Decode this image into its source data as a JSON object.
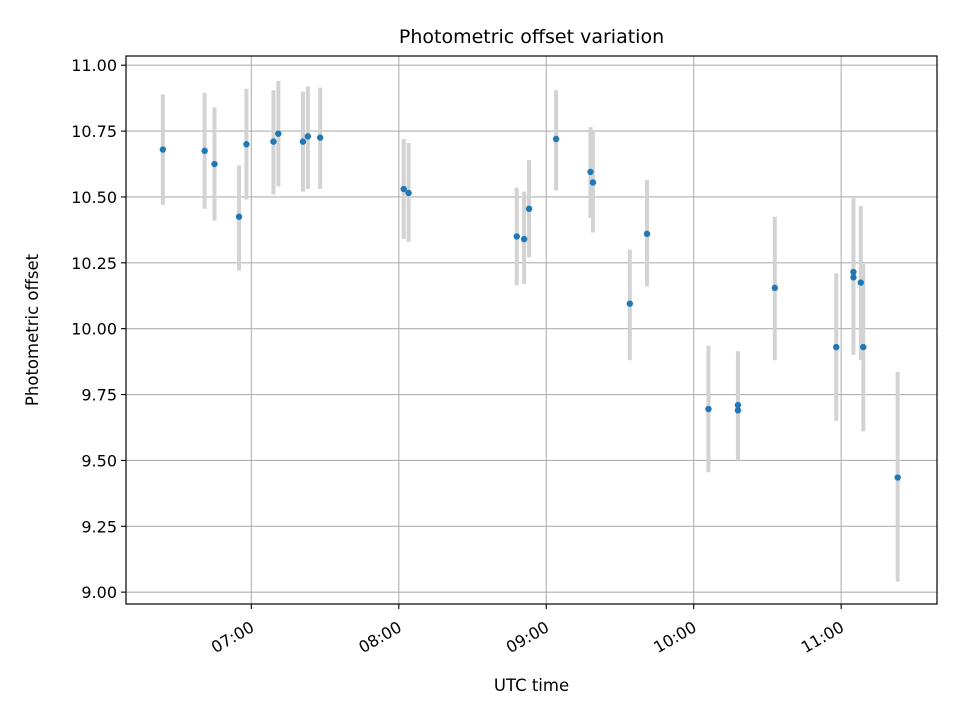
{
  "chart_data": {
    "type": "scatter",
    "title": "Photometric offset variation",
    "xlabel": "UTC time",
    "ylabel": "Photometric offset",
    "x_range": [
      "06:09",
      "11:39"
    ],
    "ylim": [
      8.955,
      11.035
    ],
    "x_ticks": [
      "07:00",
      "08:00",
      "09:00",
      "10:00",
      "11:00"
    ],
    "y_ticks": [
      9.0,
      9.25,
      9.5,
      9.75,
      10.0,
      10.25,
      10.5,
      10.75,
      11.0
    ],
    "y_tick_labels": [
      "9.00",
      "9.25",
      "9.50",
      "9.75",
      "10.00",
      "10.25",
      "10.50",
      "10.75",
      "11.00"
    ],
    "grid": true,
    "colors": {
      "point": "#1f77b4",
      "error_bar": "#d3d3d3",
      "grid": "#b0b0b0"
    },
    "points": [
      {
        "x": "06:24",
        "y": 10.68,
        "lo": 10.47,
        "hi": 10.89
      },
      {
        "x": "06:41",
        "y": 10.675,
        "lo": 10.455,
        "hi": 10.895
      },
      {
        "x": "06:45",
        "y": 10.625,
        "lo": 10.41,
        "hi": 10.84
      },
      {
        "x": "06:55",
        "y": 10.425,
        "lo": 10.22,
        "hi": 10.62
      },
      {
        "x": "06:58",
        "y": 10.7,
        "lo": 10.49,
        "hi": 10.91
      },
      {
        "x": "07:09",
        "y": 10.71,
        "lo": 10.51,
        "hi": 10.905
      },
      {
        "x": "07:11",
        "y": 10.74,
        "lo": 10.54,
        "hi": 10.94
      },
      {
        "x": "07:21",
        "y": 10.71,
        "lo": 10.52,
        "hi": 10.9
      },
      {
        "x": "07:23",
        "y": 10.73,
        "lo": 10.53,
        "hi": 10.92
      },
      {
        "x": "07:28",
        "y": 10.725,
        "lo": 10.53,
        "hi": 10.915
      },
      {
        "x": "08:02",
        "y": 10.53,
        "lo": 10.34,
        "hi": 10.72
      },
      {
        "x": "08:04",
        "y": 10.515,
        "lo": 10.33,
        "hi": 10.705
      },
      {
        "x": "08:48",
        "y": 10.35,
        "lo": 10.165,
        "hi": 10.535
      },
      {
        "x": "08:51",
        "y": 10.34,
        "lo": 10.17,
        "hi": 10.52
      },
      {
        "x": "08:53",
        "y": 10.455,
        "lo": 10.27,
        "hi": 10.64
      },
      {
        "x": "09:04",
        "y": 10.72,
        "lo": 10.525,
        "hi": 10.905
      },
      {
        "x": "09:18",
        "y": 10.595,
        "lo": 10.42,
        "hi": 10.765
      },
      {
        "x": "09:19",
        "y": 10.555,
        "lo": 10.365,
        "hi": 10.755
      },
      {
        "x": "09:34",
        "y": 10.095,
        "lo": 9.88,
        "hi": 10.3
      },
      {
        "x": "09:41",
        "y": 10.36,
        "lo": 10.16,
        "hi": 10.565
      },
      {
        "x": "10:06",
        "y": 9.695,
        "lo": 9.455,
        "hi": 9.935
      },
      {
        "x": "10:18",
        "y": 9.69,
        "lo": 9.5,
        "hi": 9.88
      },
      {
        "x": "10:18",
        "y": 9.71,
        "lo": 9.5,
        "hi": 9.915
      },
      {
        "x": "10:33",
        "y": 10.155,
        "lo": 9.88,
        "hi": 10.425
      },
      {
        "x": "10:58",
        "y": 9.93,
        "lo": 9.65,
        "hi": 10.21
      },
      {
        "x": "11:05",
        "y": 10.215,
        "lo": 9.92,
        "hi": 10.5
      },
      {
        "x": "11:05",
        "y": 10.195,
        "lo": 9.9,
        "hi": 10.49
      },
      {
        "x": "11:08",
        "y": 10.175,
        "lo": 9.88,
        "hi": 10.465
      },
      {
        "x": "11:09",
        "y": 9.93,
        "lo": 9.61,
        "hi": 10.245
      },
      {
        "x": "11:23",
        "y": 9.435,
        "lo": 9.04,
        "hi": 9.835
      }
    ]
  }
}
